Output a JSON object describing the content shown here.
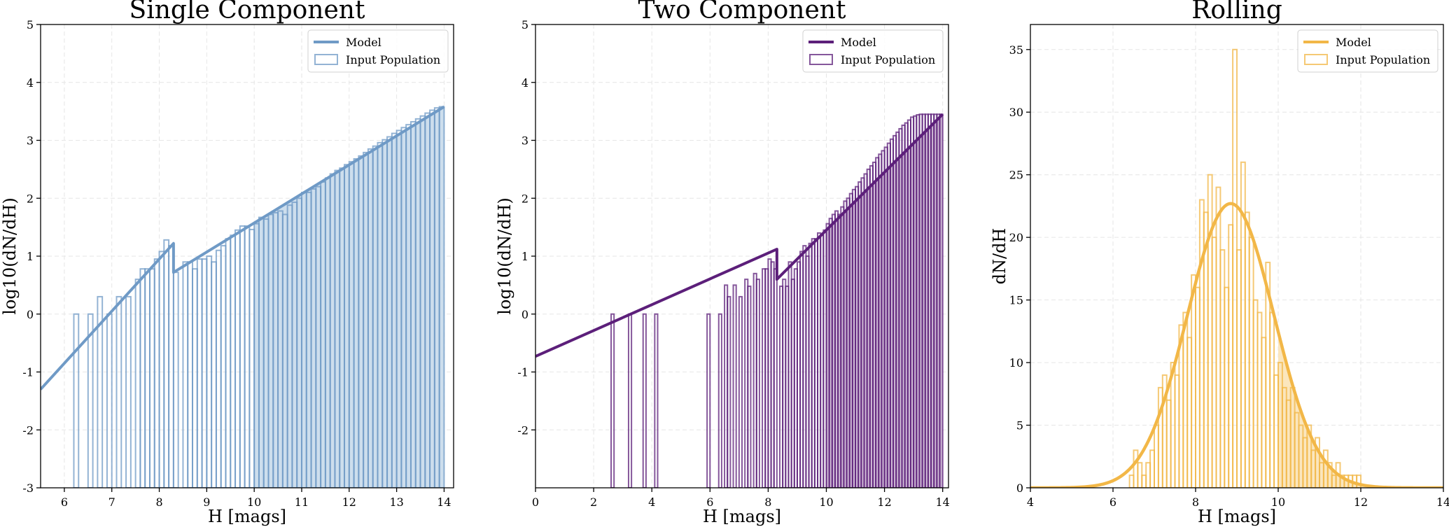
{
  "chart_data": [
    {
      "type": "line",
      "title": "Single Component",
      "xlabel": "H [mags]",
      "ylabel": "log10(dN/dH)",
      "xlim": [
        5.5,
        14.2
      ],
      "ylim": [
        -3,
        5
      ],
      "xticks": [
        6,
        7,
        8,
        9,
        10,
        11,
        12,
        13,
        14
      ],
      "yticks": [
        -3,
        -2,
        -1,
        0,
        1,
        2,
        3,
        4,
        5
      ],
      "grid": true,
      "legend": "top-right",
      "color": "#6f9ac6",
      "fill_color": "#cddeed",
      "shade_from": 10,
      "series": [
        {
          "name": "Model",
          "kind": "line",
          "x": [
            5.5,
            8.3,
            8.3,
            14.0
          ],
          "y": [
            -1.3,
            1.22,
            0.72,
            3.58
          ]
        },
        {
          "name": "Input Population",
          "kind": "step-histogram",
          "bin_width": 0.1,
          "floor": -3,
          "bins_x": [
            6.2,
            6.5,
            6.7,
            6.9,
            7.1,
            7.3,
            7.5,
            7.6,
            7.7,
            7.8,
            7.9,
            8.0,
            8.1,
            8.2,
            8.3,
            8.5,
            8.6,
            8.7,
            8.8,
            8.9,
            9.0,
            9.1,
            9.2,
            9.3,
            9.4,
            9.5,
            9.6,
            9.7,
            9.8,
            9.9,
            10.0,
            10.1,
            10.2,
            10.3,
            10.4,
            10.5,
            10.6,
            10.7,
            10.8,
            10.9,
            11.0,
            11.1,
            11.2,
            11.3,
            11.4,
            11.5,
            11.6,
            11.7,
            11.8,
            11.9,
            12.0,
            12.1,
            12.2,
            12.3,
            12.4,
            12.5,
            12.6,
            12.7,
            12.8,
            12.9,
            13.0,
            13.1,
            13.2,
            13.3,
            13.4,
            13.5,
            13.6,
            13.7,
            13.8,
            13.9
          ],
          "bins_y": [
            0.0,
            0.0,
            0.3,
            0.0,
            0.3,
            0.3,
            0.6,
            0.78,
            0.78,
            0.78,
            0.95,
            1.08,
            1.28,
            1.18,
            0.72,
            0.9,
            0.9,
            0.78,
            0.95,
            0.95,
            1.0,
            0.9,
            1.1,
            1.18,
            1.3,
            1.36,
            1.45,
            1.52,
            1.52,
            1.46,
            1.56,
            1.67,
            1.64,
            1.72,
            1.75,
            1.78,
            1.72,
            1.88,
            1.93,
            2.0,
            2.1,
            2.1,
            2.16,
            2.2,
            2.28,
            2.35,
            2.42,
            2.48,
            2.52,
            2.58,
            2.63,
            2.68,
            2.73,
            2.79,
            2.85,
            2.9,
            2.96,
            3.01,
            3.06,
            3.12,
            3.17,
            3.22,
            3.27,
            3.32,
            3.37,
            3.42,
            3.47,
            3.52,
            3.56,
            3.58
          ]
        }
      ]
    },
    {
      "type": "line",
      "title": "Two Component",
      "xlabel": "H [mags]",
      "ylabel": "log10(dN/dH)",
      "xlim": [
        0,
        14.2
      ],
      "ylim": [
        -3,
        5
      ],
      "xticks": [
        0,
        2,
        4,
        6,
        8,
        10,
        12,
        14
      ],
      "yticks": [
        -2,
        -1,
        0,
        1,
        2,
        3,
        4,
        5
      ],
      "grid": true,
      "legend": "top-right",
      "color": "#5c1f7a",
      "fill_color": "#cfbad6",
      "shade_from": 10,
      "series": [
        {
          "name": "Model",
          "kind": "line",
          "x": [
            0,
            8.3,
            8.3,
            14.0
          ],
          "y": [
            -0.73,
            1.12,
            0.6,
            3.45
          ]
        },
        {
          "name": "Input Population",
          "kind": "step-histogram",
          "bin_width": 0.1,
          "floor": -3,
          "bins_x": [
            2.6,
            3.2,
            3.7,
            4.1,
            5.9,
            6.3,
            6.5,
            6.6,
            6.8,
            7.0,
            7.2,
            7.3,
            7.5,
            7.6,
            7.8,
            7.9,
            8.0,
            8.1,
            8.2,
            8.4,
            8.5,
            8.6,
            8.7,
            8.8,
            8.9,
            9.0,
            9.1,
            9.2,
            9.3,
            9.4,
            9.5,
            9.6,
            9.7,
            9.8,
            9.9,
            10.0,
            10.1,
            10.2,
            10.3,
            10.4,
            10.5,
            10.6,
            10.7,
            10.8,
            10.9,
            11.0,
            11.1,
            11.2,
            11.3,
            11.4,
            11.5,
            11.6,
            11.7,
            11.8,
            11.9,
            12.0,
            12.1,
            12.2,
            12.3,
            12.4,
            12.5,
            12.6,
            12.7,
            12.8,
            12.9,
            13.0,
            13.1,
            13.2,
            13.3,
            13.4,
            13.5,
            13.6,
            13.7,
            13.8,
            13.9
          ],
          "bins_y": [
            0.0,
            0.0,
            0.0,
            0.0,
            0.0,
            0.0,
            0.5,
            0.3,
            0.5,
            0.3,
            0.6,
            0.48,
            0.7,
            0.6,
            0.78,
            0.78,
            0.95,
            0.9,
            0.78,
            0.48,
            0.6,
            0.48,
            0.9,
            0.6,
            0.78,
            0.9,
            1.08,
            1.18,
            1.0,
            1.22,
            1.3,
            1.3,
            1.4,
            1.36,
            1.45,
            1.56,
            1.65,
            1.72,
            1.78,
            1.72,
            1.85,
            1.95,
            2.0,
            2.08,
            2.15,
            2.2,
            2.28,
            2.35,
            2.42,
            2.5,
            2.56,
            2.62,
            2.7,
            2.76,
            2.82,
            2.88,
            2.95,
            3.02,
            3.08,
            3.14,
            3.2,
            3.26,
            3.3,
            3.35,
            3.4,
            3.42,
            3.44,
            3.45,
            3.45,
            3.45,
            3.45,
            3.45,
            3.45,
            3.45,
            3.45
          ]
        }
      ]
    },
    {
      "type": "line",
      "title": "Rolling",
      "xlabel": "H [mags]",
      "ylabel": "dN/dH",
      "xlim": [
        4,
        14
      ],
      "ylim": [
        0,
        37
      ],
      "xticks": [
        4,
        6,
        8,
        10,
        12,
        14
      ],
      "yticks": [
        0,
        5,
        10,
        15,
        20,
        25,
        30,
        35
      ],
      "grid": true,
      "legend": "top-right",
      "color": "#f2b747",
      "fill_color": "#fbe6bd",
      "shade_from": 10,
      "series": [
        {
          "name": "Model",
          "kind": "gaussian-curve",
          "peak": 22.7,
          "center": 8.85,
          "sigma": 1.05,
          "x_range": [
            4,
            14
          ]
        },
        {
          "name": "Input Population",
          "kind": "step-histogram",
          "bin_width": 0.1,
          "floor": 0,
          "bins_x": [
            6.4,
            6.5,
            6.6,
            6.7,
            6.8,
            6.9,
            7.0,
            7.1,
            7.2,
            7.3,
            7.4,
            7.5,
            7.6,
            7.7,
            7.8,
            7.9,
            8.0,
            8.1,
            8.2,
            8.3,
            8.4,
            8.5,
            8.6,
            8.7,
            8.8,
            8.9,
            9.0,
            9.1,
            9.2,
            9.3,
            9.4,
            9.5,
            9.6,
            9.7,
            9.8,
            9.9,
            10.0,
            10.1,
            10.2,
            10.3,
            10.4,
            10.5,
            10.6,
            10.7,
            10.8,
            10.9,
            11.0,
            11.1,
            11.2,
            11.3,
            11.4,
            11.5,
            11.6,
            11.7,
            11.8,
            11.9,
            12.0
          ],
          "bins_y": [
            1,
            3,
            2,
            1,
            2,
            3,
            5,
            8,
            9,
            7,
            10,
            9,
            13,
            14,
            12,
            17,
            16,
            23,
            22,
            25,
            20,
            24,
            19,
            16,
            21,
            35,
            19,
            26,
            22,
            20,
            15,
            14,
            12,
            18,
            14,
            9,
            10,
            8,
            7,
            8,
            6,
            5,
            4,
            5,
            3,
            4,
            2,
            3,
            2,
            1,
            2,
            1,
            1,
            1,
            1,
            1,
            0
          ]
        }
      ]
    }
  ]
}
